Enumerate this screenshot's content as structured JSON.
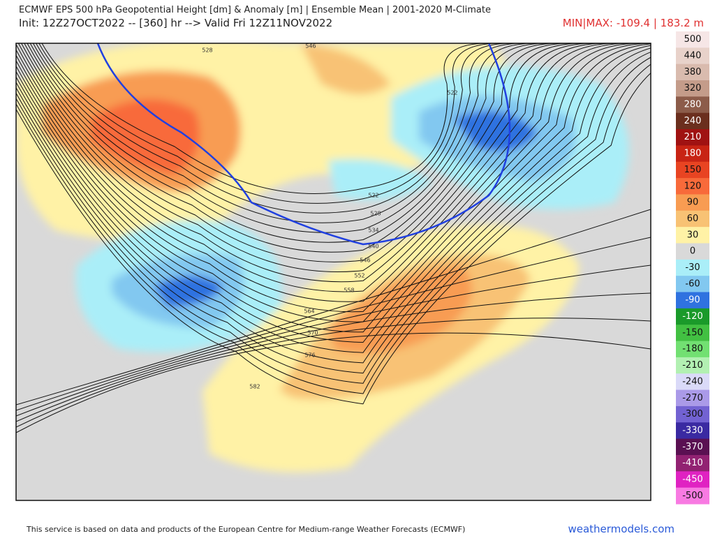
{
  "header": {
    "title": "ECMWF EPS 500 hPa Geopotential Height [dm] & Anomaly [m] | Ensemble Mean | 2001-2020 M-Climate",
    "subtitle": "Init: 12Z27OCT2022 -- [360] hr --> Valid Fri 12Z11NOV2022",
    "minmax": "MIN|MAX: -109.4 | 183.2 m"
  },
  "colorbar": {
    "levels": [
      500,
      440,
      380,
      320,
      280,
      240,
      210,
      180,
      150,
      120,
      90,
      60,
      30,
      0,
      -30,
      -60,
      -90,
      -120,
      -150,
      -180,
      -210,
      -240,
      -270,
      -300,
      -330,
      -370,
      -410,
      -450,
      -500
    ],
    "colors": [
      "#f6e6e6",
      "#e8d2ca",
      "#d9bbae",
      "#c49c8a",
      "#8c5c4a",
      "#6b2f1e",
      "#a01212",
      "#c82414",
      "#e84422",
      "#f86a3a",
      "#f89c52",
      "#f8c274",
      "#fff2a6",
      "#d9d9d9",
      "#aaeef8",
      "#82c8f0",
      "#2f72e0",
      "#1a9a2a",
      "#42c042",
      "#72e072",
      "#b2f0b2",
      "#dadaf8",
      "#aa9ae8",
      "#7262d2",
      "#3a2aa2",
      "#5a1052",
      "#922272",
      "#e022c2",
      "#f87ae2"
    ]
  },
  "contour_labels": [
    528,
    546,
    522,
    522,
    528,
    534,
    540,
    546,
    552,
    558,
    564,
    570,
    576,
    582
  ],
  "footer": {
    "credit": "This service is based on data and products of the European Centre for Medium-range Weather Forecasts (ECMWF)",
    "site": "weathermodels.com"
  }
}
